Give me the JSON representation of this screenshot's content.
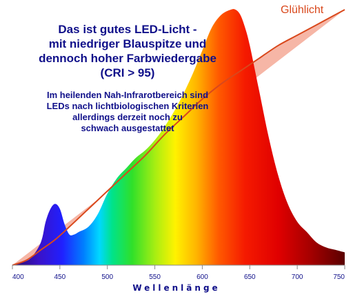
{
  "chart_data": {
    "type": "area",
    "headline": [
      "Das ist gutes LED-Licht -",
      "mit niedriger Blauspitze und",
      "dennoch hoher Farbwiedergabe",
      "(CRI > 95)"
    ],
    "subtext": [
      "Im heilenden Nah-Infrarotbereich sind",
      "LEDs nach lichtbiologischen Kriterien",
      "allerdings derzeit noch zu",
      "schwach ausgestattet"
    ],
    "xlabel": "Wellenlänge",
    "xlim": [
      400,
      750
    ],
    "ylim": [
      0,
      1
    ],
    "x_ticks": [
      400,
      450,
      500,
      550,
      600,
      650,
      700,
      750
    ],
    "series": [
      {
        "name": "",
        "color_mode": "spectrum",
        "x": [
          400,
          410,
          420,
          430,
          435,
          440,
          445,
          450,
          455,
          460,
          465,
          470,
          480,
          490,
          500,
          510,
          520,
          530,
          540,
          550,
          560,
          570,
          580,
          590,
          600,
          610,
          620,
          630,
          635,
          640,
          645,
          650,
          660,
          670,
          680,
          690,
          700,
          710,
          720,
          730,
          740,
          750
        ],
        "y": [
          0.0,
          0.01,
          0.03,
          0.09,
          0.17,
          0.22,
          0.24,
          0.22,
          0.16,
          0.12,
          0.12,
          0.13,
          0.15,
          0.2,
          0.28,
          0.34,
          0.38,
          0.42,
          0.45,
          0.49,
          0.54,
          0.6,
          0.67,
          0.75,
          0.84,
          0.93,
          0.98,
          1.0,
          1.0,
          0.98,
          0.93,
          0.86,
          0.68,
          0.5,
          0.35,
          0.24,
          0.17,
          0.13,
          0.09,
          0.07,
          0.06,
          0.05
        ]
      },
      {
        "name": "Glühlicht",
        "color": "#d9481c",
        "fill": "#f6b6a6",
        "x": [
          400,
          415,
          430,
          445,
          460,
          480,
          500,
          520,
          540,
          560,
          580,
          600,
          620,
          640,
          660,
          680,
          700,
          720,
          740,
          750
        ],
        "y": [
          0.0,
          0.02,
          0.06,
          0.1,
          0.15,
          0.22,
          0.29,
          0.36,
          0.43,
          0.51,
          0.58,
          0.65,
          0.71,
          0.76,
          0.81,
          0.86,
          0.9,
          0.94,
          0.98,
          1.0
        ]
      }
    ]
  }
}
